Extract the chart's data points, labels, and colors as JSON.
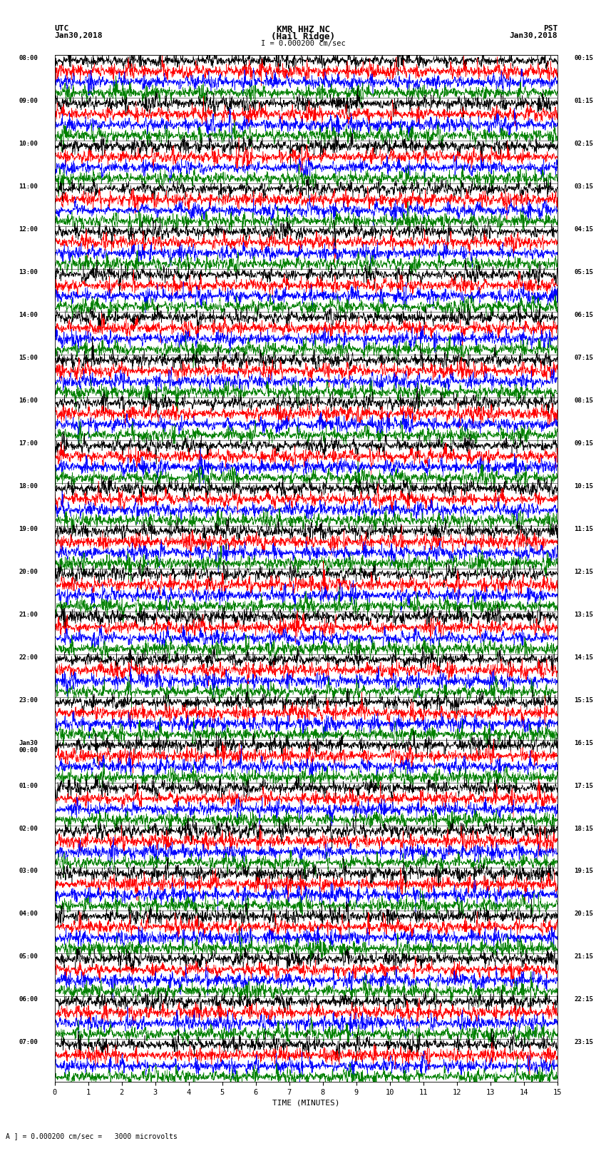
{
  "title_line1": "KMR HHZ NC",
  "title_line2": "(Hail Ridge)",
  "scale_text": "I = 0.000200 cm/sec",
  "left_header1": "UTC",
  "left_header2": "Jan30,2018",
  "right_header1": "PST",
  "right_header2": "Jan30,2018",
  "bottom_xlabel": "TIME (MINUTES)",
  "bottom_note": "A ] = 0.000200 cm/sec =   3000 microvolts",
  "utc_times": [
    "08:00",
    "09:00",
    "10:00",
    "11:00",
    "12:00",
    "13:00",
    "14:00",
    "15:00",
    "16:00",
    "17:00",
    "18:00",
    "19:00",
    "20:00",
    "21:00",
    "22:00",
    "23:00",
    "Jan30\n00:00",
    "01:00",
    "02:00",
    "03:00",
    "04:00",
    "05:00",
    "06:00",
    "07:00"
  ],
  "pst_times": [
    "00:15",
    "01:15",
    "02:15",
    "03:15",
    "04:15",
    "05:15",
    "06:15",
    "07:15",
    "08:15",
    "09:15",
    "10:15",
    "11:15",
    "12:15",
    "13:15",
    "14:15",
    "15:15",
    "16:15",
    "17:15",
    "18:15",
    "19:15",
    "20:15",
    "21:15",
    "22:15",
    "23:15"
  ],
  "colors": [
    "black",
    "red",
    "blue",
    "green"
  ],
  "num_rows": 24,
  "traces_per_row": 4,
  "time_minutes": 15,
  "bg_color": "white",
  "figure_width": 8.5,
  "figure_height": 16.13
}
